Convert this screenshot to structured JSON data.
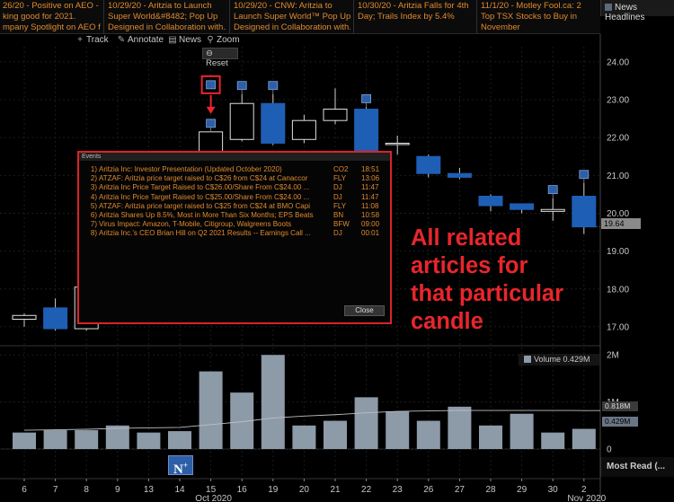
{
  "news": [
    {
      "line1": "26/20 - Positive on AEO -",
      "line2": "king good for 2021.",
      "line3": "mpany Spotlight on AEO fro..."
    },
    {
      "line1": "10/29/20 - Aritzia to Launch",
      "line2": "Super World&#8482; Pop Up",
      "line3": "Designed in Collaboration with..."
    },
    {
      "line1": "10/29/20 - CNW: Aritzia to",
      "line2": "Launch Super World™ Pop Up",
      "line3": "Designed in Collaboration with..."
    },
    {
      "line1": "10/30/20 - Aritzia Falls for 4th",
      "line2": "Day; Trails Index by 5.4%",
      "line3": ""
    },
    {
      "line1": "11/1/20 - Motley Fool.ca: 2",
      "line2": "Top TSX Stocks to Buy in",
      "line3": "November"
    }
  ],
  "headlines_label": "News Headlines",
  "toolbar": {
    "track": "Track",
    "annotate": "Annotate",
    "news": "News",
    "zoom": "Zoom",
    "reset": "Reset"
  },
  "events": {
    "title": "Events",
    "close": "Close",
    "rows": [
      {
        "num": "1)",
        "text": "Aritzia Inc: Investor Presentation (Updated October 2020)",
        "src": "CO2",
        "time": "18:51"
      },
      {
        "num": "2)",
        "text": "ATZAF: Aritzia price target raised to C$26 from C$24 at Canaccor",
        "src": "FLY",
        "time": "13:06"
      },
      {
        "num": "3)",
        "text": "Aritzia Inc Price Target Raised to C$26.00/Share From C$24.00 ...",
        "src": "DJ",
        "time": "11:47"
      },
      {
        "num": "4)",
        "text": "Aritzia Inc Price Target Raised to C$25.00/Share From C$24.00 ...",
        "src": "DJ",
        "time": "11:47"
      },
      {
        "num": "5)",
        "text": "ATZAF: Aritzia price target raised to C$25 from C$24 at BMO Capi",
        "src": "FLY",
        "time": "11:08"
      },
      {
        "num": "6)",
        "text": "Aritzia Shares Up 8.5%, Most in More Than Six Months; EPS Beats",
        "src": "BN",
        "time": "10:58"
      },
      {
        "num": "7)",
        "text": "Virus Impact: Amazon, T-Mobile, Citigroup, Walgreens Boots",
        "src": "BFW",
        "time": "09:00"
      },
      {
        "num": "8)",
        "text": "Aritzia Inc.'s CEO Brian Hill on Q2 2021 Results -- Earnings Call ...",
        "src": "DJ",
        "time": "00:01"
      }
    ]
  },
  "annotation": [
    "All related",
    "articles for",
    "that particular",
    "candle"
  ],
  "last_price": "19.64",
  "volume_legend": "Volume 0.429M",
  "volume_tags": [
    "0.818M",
    "0.429M"
  ],
  "most_read": "Most Read (...",
  "nplus": "N",
  "colors": {
    "up": "#000000",
    "down": "#1f5eb5",
    "orange": "#e08a2e",
    "red": "#e8262c",
    "volume": "#8d9aa8"
  },
  "chart_data": {
    "type": "candlestick",
    "price_ticks": [
      "24.00",
      "23.00",
      "22.00",
      "21.00",
      "20.00",
      "19.00",
      "18.00",
      "17.00"
    ],
    "volume_ticks": [
      "2M",
      "1M",
      "0"
    ],
    "x_labels": [
      "6",
      "7",
      "8",
      "9",
      "13",
      "14",
      "15",
      "16",
      "19",
      "20",
      "21",
      "22",
      "23",
      "26",
      "27",
      "28",
      "29",
      "30",
      "2"
    ],
    "month_labels": [
      {
        "text": "Oct 2020",
        "at": 6
      },
      {
        "text": "Nov 2020",
        "at": 18
      }
    ],
    "candles": [
      {
        "o": 17.2,
        "h": 17.35,
        "l": 17.0,
        "c": 17.3
      },
      {
        "o": 17.5,
        "h": 17.75,
        "l": 16.9,
        "c": 16.95
      },
      {
        "o": 16.95,
        "h": 18.1,
        "l": 16.9,
        "c": 18.05
      },
      {
        "o": 18.2,
        "h": 18.4,
        "l": 17.9,
        "c": 18.2
      },
      {
        "o": 18.3,
        "h": 18.5,
        "l": 18.0,
        "c": 18.35
      },
      {
        "o": 18.4,
        "h": 18.6,
        "l": 18.2,
        "c": 18.5
      },
      {
        "o": 21.35,
        "h": 22.15,
        "l": 21.3,
        "c": 22.15
      },
      {
        "o": 21.95,
        "h": 23.15,
        "l": 21.9,
        "c": 22.9
      },
      {
        "o": 22.9,
        "h": 23.15,
        "l": 21.8,
        "c": 21.85
      },
      {
        "o": 21.95,
        "h": 22.6,
        "l": 21.85,
        "c": 22.45
      },
      {
        "o": 22.45,
        "h": 23.3,
        "l": 22.35,
        "c": 22.75
      },
      {
        "o": 22.75,
        "h": 22.8,
        "l": 21.2,
        "c": 21.35
      },
      {
        "o": 21.85,
        "h": 22.05,
        "l": 21.55,
        "c": 21.85
      },
      {
        "o": 21.5,
        "h": 21.55,
        "l": 20.95,
        "c": 21.05
      },
      {
        "o": 21.05,
        "h": 21.2,
        "l": 20.9,
        "c": 20.95
      },
      {
        "o": 20.45,
        "h": 20.5,
        "l": 20.05,
        "c": 20.2
      },
      {
        "o": 20.25,
        "h": 20.25,
        "l": 20.0,
        "c": 20.1
      },
      {
        "o": 20.05,
        "h": 20.4,
        "l": 19.8,
        "c": 20.1
      },
      {
        "o": 20.45,
        "h": 20.8,
        "l": 19.45,
        "c": 19.64
      }
    ],
    "news_markers": [
      6,
      7,
      8,
      11,
      17,
      18
    ],
    "volume_millions": [
      0.35,
      0.4,
      0.4,
      0.5,
      0.35,
      0.38,
      1.65,
      1.2,
      2.0,
      0.5,
      0.6,
      1.1,
      0.8,
      0.6,
      0.9,
      0.5,
      0.75,
      0.35,
      0.429
    ],
    "volume_avg_millions": [
      0.4,
      0.41,
      0.42,
      0.44,
      0.45,
      0.46,
      0.52,
      0.58,
      0.66,
      0.7,
      0.73,
      0.77,
      0.8,
      0.81,
      0.82,
      0.82,
      0.82,
      0.82,
      0.818
    ],
    "price_ylim": [
      16.5,
      24.4
    ],
    "volume_ylim": [
      0,
      2.1
    ]
  }
}
